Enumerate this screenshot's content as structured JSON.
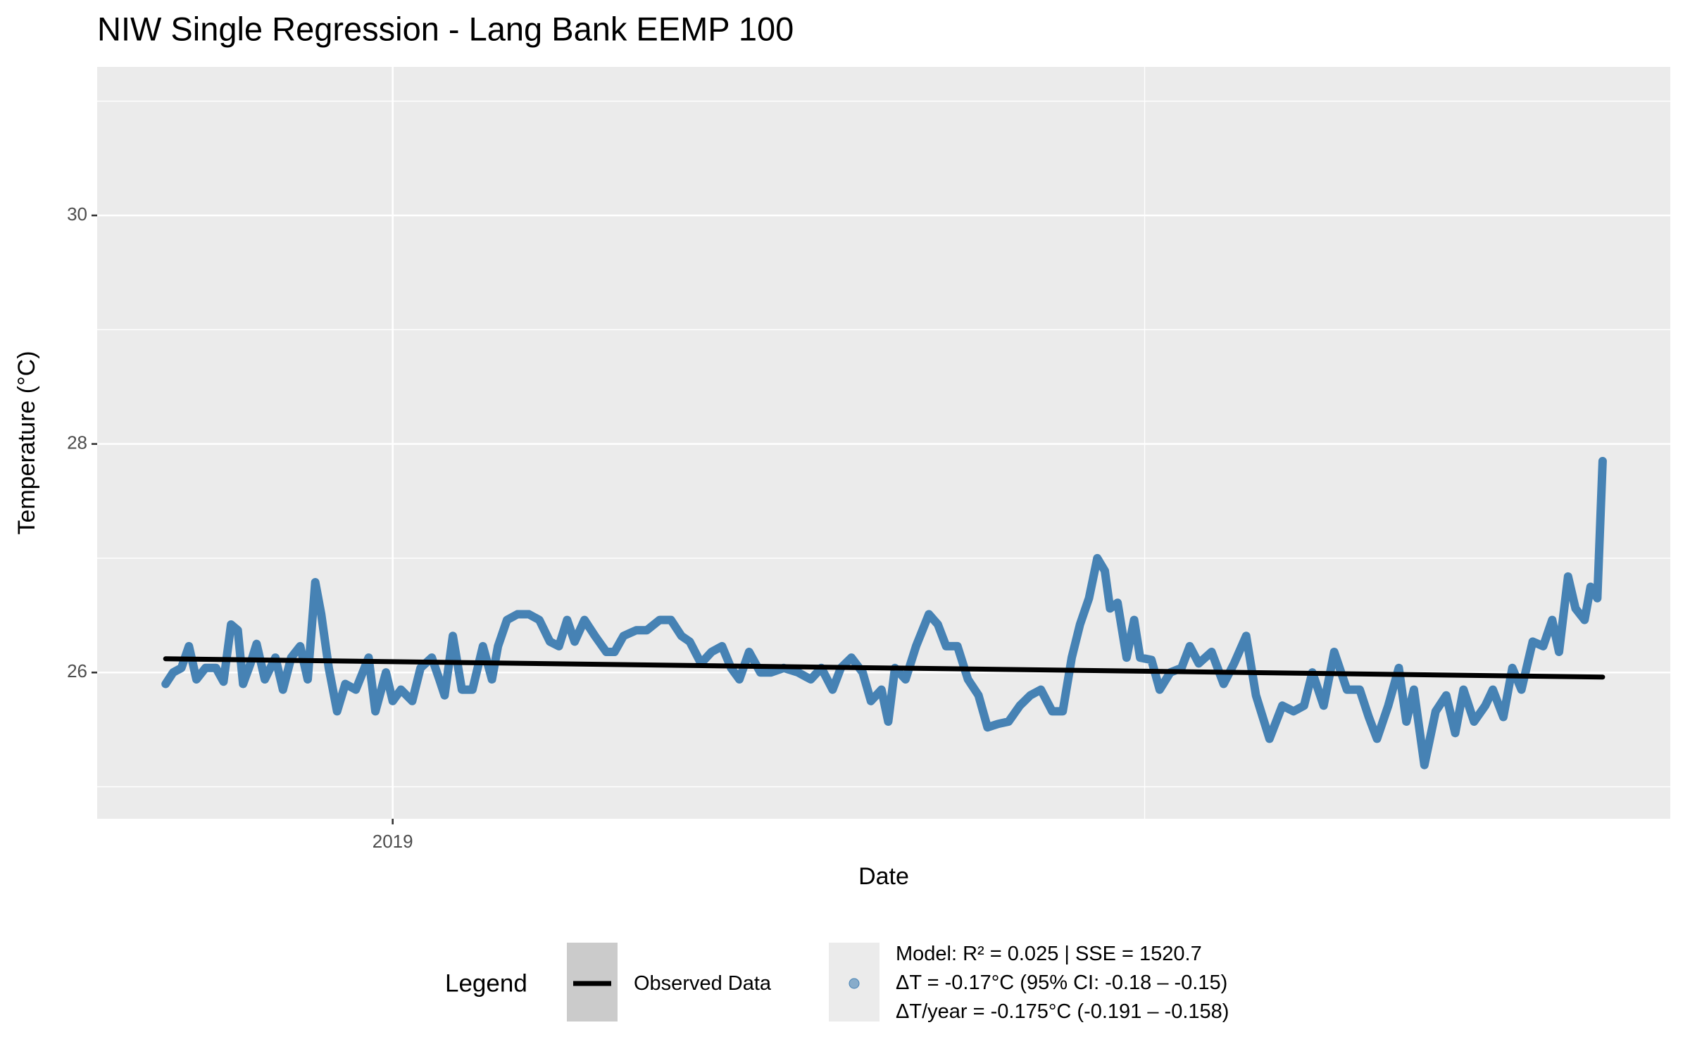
{
  "chart_data": {
    "type": "line",
    "title": "NIW Single Regression - Lang Bank EEMP 100",
    "x_label": "Date",
    "y_label": "Temperature (°C)",
    "xlim": [
      2018.607,
      2020.699
    ],
    "xticks": [
      2019
    ],
    "x_minor_ticks": [
      2020
    ],
    "ylim": [
      24.72,
      31.3
    ],
    "yticks": [
      26,
      28,
      30
    ],
    "y_minor_ticks": [
      25,
      27,
      29,
      31
    ],
    "grid": true,
    "legend_title": "Legend",
    "legend_position": "bottom",
    "series": [
      {
        "name": "Model: R² = 0.025 | SSE = 1520.7\nΔT = -0.17°C (95% CI: -0.18 – -0.15)\nΔT/year = -0.175°C (-0.191 – -0.158)",
        "color": "#4682b4",
        "legend_key": "point",
        "x": [
          2018.698,
          2018.708,
          2018.719,
          2018.729,
          2018.739,
          2018.751,
          2018.765,
          2018.775,
          2018.785,
          2018.794,
          2018.801,
          2018.811,
          2018.819,
          2018.83,
          2018.844,
          2018.854,
          2018.865,
          2018.877,
          2018.887,
          2018.897,
          2018.905,
          2018.915,
          2018.926,
          2018.937,
          2018.951,
          2018.968,
          2018.977,
          2018.991,
          2019.0,
          2019.011,
          2019.026,
          2019.037,
          2019.052,
          2019.062,
          2019.069,
          2019.08,
          2019.092,
          2019.106,
          2019.12,
          2019.132,
          2019.14,
          2019.152,
          2019.166,
          2019.181,
          2019.195,
          2019.209,
          2019.221,
          2019.232,
          2019.242,
          2019.255,
          2019.269,
          2019.284,
          2019.295,
          2019.307,
          2019.324,
          2019.338,
          2019.355,
          2019.37,
          2019.384,
          2019.395,
          2019.41,
          2019.424,
          2019.438,
          2019.45,
          2019.461,
          2019.474,
          2019.489,
          2019.503,
          2019.52,
          2019.539,
          2019.556,
          2019.57,
          2019.585,
          2019.596,
          2019.61,
          2019.625,
          2019.636,
          2019.65,
          2019.659,
          2019.668,
          2019.682,
          2019.696,
          2019.713,
          2019.725,
          2019.736,
          2019.751,
          2019.765,
          2019.779,
          2019.791,
          2019.805,
          2019.819,
          2019.834,
          2019.848,
          2019.862,
          2019.877,
          2019.891,
          2019.903,
          2019.914,
          2019.926,
          2019.937,
          2019.947,
          2019.954,
          2019.964,
          2019.976,
          2019.986,
          2019.994,
          2020.009,
          2020.02,
          2020.034,
          2020.049,
          2020.06,
          2020.072,
          2020.089,
          2020.105,
          2020.119,
          2020.135,
          2020.148,
          2020.166,
          2020.183,
          2020.198,
          2020.212,
          2020.223,
          2020.238,
          2020.252,
          2020.269,
          2020.286,
          2020.298,
          2020.309,
          2020.324,
          2020.338,
          2020.348,
          2020.358,
          2020.372,
          2020.387,
          2020.401,
          2020.413,
          2020.424,
          2020.438,
          2020.453,
          2020.463,
          2020.477,
          2020.489,
          2020.501,
          2020.516,
          2020.53,
          2020.542,
          2020.551,
          2020.563,
          2020.573,
          2020.585,
          2020.593,
          2020.602,
          2020.609
        ],
        "values": [
          25.9,
          26.0,
          26.04,
          26.23,
          25.94,
          26.04,
          26.04,
          25.92,
          26.42,
          26.37,
          25.9,
          26.08,
          26.25,
          25.94,
          26.13,
          25.85,
          26.13,
          26.23,
          25.94,
          26.79,
          26.51,
          26.04,
          25.66,
          25.9,
          25.85,
          26.13,
          25.66,
          26.0,
          25.75,
          25.85,
          25.75,
          26.04,
          26.13,
          25.94,
          25.8,
          26.32,
          25.85,
          25.85,
          26.23,
          25.94,
          26.23,
          26.46,
          26.51,
          26.51,
          26.46,
          26.27,
          26.23,
          26.46,
          26.27,
          26.46,
          26.32,
          26.18,
          26.18,
          26.32,
          26.37,
          26.37,
          26.46,
          26.46,
          26.32,
          26.27,
          26.08,
          26.18,
          26.23,
          26.04,
          25.94,
          26.18,
          26.0,
          26.0,
          26.04,
          26.0,
          25.94,
          26.04,
          25.85,
          26.04,
          26.13,
          26.0,
          25.75,
          25.85,
          25.57,
          26.04,
          25.94,
          26.23,
          26.51,
          26.42,
          26.23,
          26.23,
          25.94,
          25.8,
          25.52,
          25.55,
          25.57,
          25.71,
          25.8,
          25.85,
          25.66,
          25.66,
          26.13,
          26.42,
          26.65,
          27.0,
          26.89,
          26.56,
          26.61,
          26.13,
          26.46,
          26.13,
          26.11,
          25.85,
          26.0,
          26.04,
          26.23,
          26.08,
          26.18,
          25.9,
          26.08,
          26.32,
          25.8,
          25.42,
          25.71,
          25.66,
          25.71,
          26.0,
          25.71,
          26.18,
          25.85,
          25.85,
          25.61,
          25.42,
          25.71,
          26.04,
          25.57,
          25.85,
          25.19,
          25.66,
          25.8,
          25.47,
          25.85,
          25.57,
          25.71,
          25.85,
          25.61,
          26.04,
          25.85,
          26.27,
          26.23,
          26.46,
          26.18,
          26.84,
          26.56,
          26.46,
          26.75,
          26.65,
          27.85
        ]
      },
      {
        "name": "Observed Data",
        "color": "#000000",
        "legend_key": "line",
        "x": [
          2018.698,
          2020.609
        ],
        "values": [
          26.12,
          25.96
        ]
      }
    ]
  }
}
